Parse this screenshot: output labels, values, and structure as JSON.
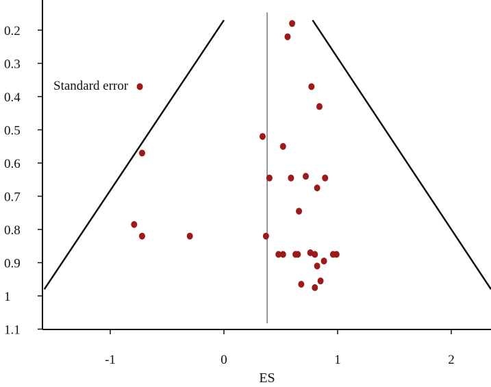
{
  "chart_data": {
    "type": "scatter",
    "title": "",
    "xlabel": "ES",
    "ylabel": "",
    "annotation": "Standard error",
    "xlim": [
      -1.6,
      2.35
    ],
    "ylim": [
      0.15,
      1.1
    ],
    "y_inverted": true,
    "x_ticks": [
      {
        "value": -1,
        "label": "-1"
      },
      {
        "value": 0,
        "label": "0"
      },
      {
        "value": 1,
        "label": "1"
      },
      {
        "value": 2,
        "label": "2"
      }
    ],
    "y_ticks": [
      {
        "value": 0.2,
        "label": "0.2"
      },
      {
        "value": 0.3,
        "label": "0.3"
      },
      {
        "value": 0.4,
        "label": "0.4"
      },
      {
        "value": 0.5,
        "label": "0.5"
      },
      {
        "value": 0.6,
        "label": "0.6"
      },
      {
        "value": 0.7,
        "label": "0.7"
      },
      {
        "value": 0.8,
        "label": "0.8"
      },
      {
        "value": 0.9,
        "label": "0.9"
      },
      {
        "value": 1,
        "label": "1"
      },
      {
        "value": 1.1,
        "label": "1.1"
      }
    ],
    "pooled_effect": 0.38,
    "funnel_left": [
      [
        0.0,
        0.17
      ],
      [
        -1.58,
        0.98
      ]
    ],
    "funnel_right": [
      [
        0.78,
        0.17
      ],
      [
        2.35,
        0.98
      ]
    ],
    "point_color": "#9b1b1b",
    "line_color": "#111111",
    "points": [
      {
        "x": 0.6,
        "y": 0.18
      },
      {
        "x": 0.56,
        "y": 0.22
      },
      {
        "x": -0.74,
        "y": 0.37
      },
      {
        "x": 0.77,
        "y": 0.37
      },
      {
        "x": 0.84,
        "y": 0.43
      },
      {
        "x": 0.34,
        "y": 0.52
      },
      {
        "x": 0.52,
        "y": 0.55
      },
      {
        "x": -0.72,
        "y": 0.57
      },
      {
        "x": 0.4,
        "y": 0.645
      },
      {
        "x": 0.59,
        "y": 0.645
      },
      {
        "x": 0.72,
        "y": 0.64
      },
      {
        "x": 0.89,
        "y": 0.645
      },
      {
        "x": 0.82,
        "y": 0.675
      },
      {
        "x": 0.66,
        "y": 0.745
      },
      {
        "x": -0.79,
        "y": 0.785
      },
      {
        "x": -0.72,
        "y": 0.82
      },
      {
        "x": -0.3,
        "y": 0.82
      },
      {
        "x": 0.37,
        "y": 0.82
      },
      {
        "x": 0.48,
        "y": 0.875
      },
      {
        "x": 0.52,
        "y": 0.875
      },
      {
        "x": 0.63,
        "y": 0.875
      },
      {
        "x": 0.65,
        "y": 0.875
      },
      {
        "x": 0.76,
        "y": 0.87
      },
      {
        "x": 0.8,
        "y": 0.875
      },
      {
        "x": 0.96,
        "y": 0.875
      },
      {
        "x": 0.99,
        "y": 0.875
      },
      {
        "x": 0.88,
        "y": 0.895
      },
      {
        "x": 0.82,
        "y": 0.91
      },
      {
        "x": 0.68,
        "y": 0.965
      },
      {
        "x": 0.85,
        "y": 0.955
      },
      {
        "x": 0.8,
        "y": 0.975
      }
    ]
  }
}
